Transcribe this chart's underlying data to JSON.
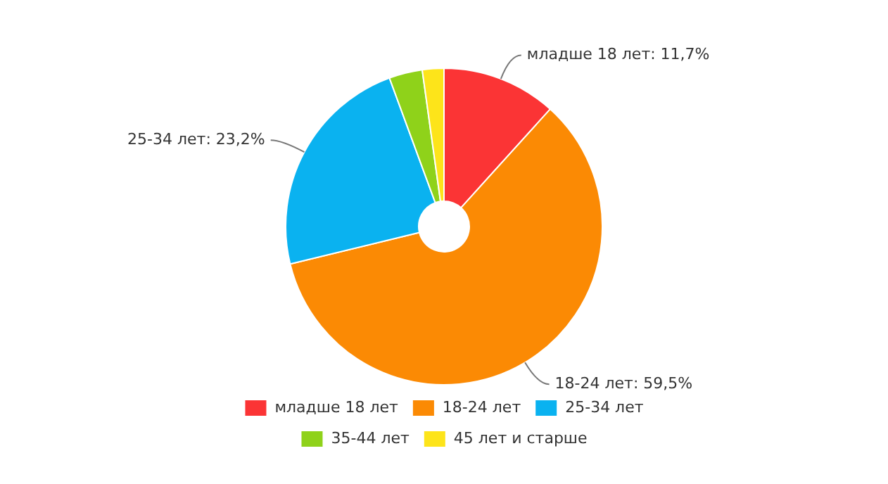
{
  "chart_data": {
    "type": "donut",
    "categories": [
      "младше 18 лет",
      "18-24 лет",
      "25-34 лет",
      "35-44 лет",
      "45 лет и старше"
    ],
    "values": [
      11.7,
      59.5,
      23.2,
      3.4,
      2.2
    ],
    "colors": [
      "#fb3435",
      "#fb8a04",
      "#0ab2f0",
      "#8fd21a",
      "#fde41a"
    ],
    "value_labels": [
      "младше 18 лет: 11,7%",
      "18-24 лет: 59,5%",
      "25-34 лет: 23,2%",
      null,
      null
    ],
    "legend": "bottom"
  }
}
